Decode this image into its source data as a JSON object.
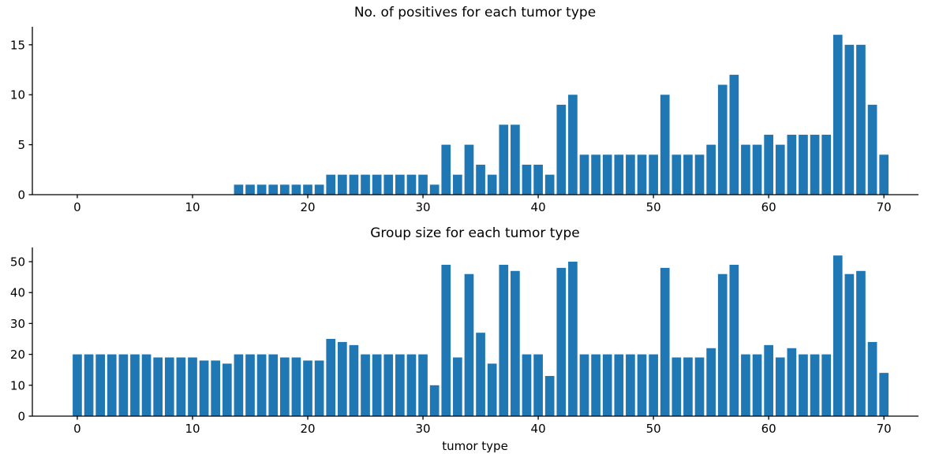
{
  "figure": {
    "background": "#ffffff",
    "text_color": "#000000",
    "layout_hint": {
      "rows": 2,
      "cols": 1,
      "grid": false,
      "legend": "none",
      "spines": "left-bottom"
    }
  },
  "chart_data": [
    {
      "type": "bar",
      "title": "No. of positives for each tumor type",
      "xlabel": "",
      "ylabel": "",
      "x_start": 0,
      "values": [
        0,
        0,
        0,
        0,
        0,
        0,
        0,
        0,
        0,
        0,
        0,
        0,
        0,
        0,
        1,
        1,
        1,
        1,
        1,
        1,
        1,
        1,
        2,
        2,
        2,
        2,
        2,
        2,
        2,
        2,
        2,
        1,
        5,
        2,
        5,
        3,
        2,
        7,
        7,
        3,
        3,
        2,
        9,
        10,
        4,
        4,
        4,
        4,
        4,
        4,
        4,
        10,
        4,
        4,
        4,
        5,
        11,
        12,
        5,
        5,
        6,
        5,
        6,
        6,
        6,
        6,
        16,
        15,
        15,
        9,
        4
      ],
      "xlim": [
        -3.9,
        73.0
      ],
      "ylim": [
        0,
        16.8
      ],
      "xticks": [
        0,
        10,
        20,
        30,
        40,
        50,
        60,
        70
      ],
      "yticks": [
        0,
        5,
        10,
        15
      ],
      "bar_color": "#1f77b4",
      "bar_width": 0.8,
      "grid": false,
      "legend": "none"
    },
    {
      "type": "bar",
      "title": "Group size for each tumor type",
      "xlabel": "tumor type",
      "ylabel": "",
      "x_start": 0,
      "values": [
        20,
        20,
        20,
        20,
        20,
        20,
        20,
        19,
        19,
        19,
        19,
        18,
        18,
        17,
        20,
        20,
        20,
        20,
        19,
        19,
        18,
        18,
        25,
        24,
        23,
        20,
        20,
        20,
        20,
        20,
        20,
        10,
        49,
        19,
        46,
        27,
        17,
        49,
        47,
        20,
        20,
        13,
        48,
        50,
        20,
        20,
        20,
        20,
        20,
        20,
        20,
        48,
        19,
        19,
        19,
        22,
        46,
        49,
        20,
        20,
        23,
        19,
        22,
        20,
        20,
        20,
        52,
        46,
        47,
        24,
        14
      ],
      "xlim": [
        -3.9,
        73.0
      ],
      "ylim": [
        0,
        54.6
      ],
      "xticks": [
        0,
        10,
        20,
        30,
        40,
        50,
        60,
        70
      ],
      "yticks": [
        0,
        10,
        20,
        30,
        40,
        50
      ],
      "bar_color": "#1f77b4",
      "bar_width": 0.8,
      "grid": false,
      "legend": "none"
    }
  ]
}
